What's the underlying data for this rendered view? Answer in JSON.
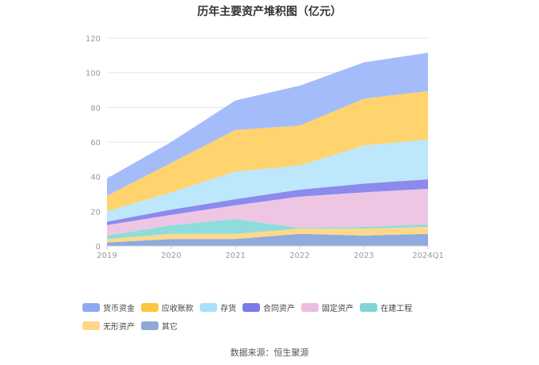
{
  "chart_data": {
    "type": "area",
    "stacked": true,
    "title": "历年主要资产堆积图（亿元）",
    "categories": [
      "2019",
      "2020",
      "2021",
      "2022",
      "2023",
      "2024Q1"
    ],
    "ylim": [
      0,
      120
    ],
    "yticks": [
      0,
      20,
      40,
      60,
      80,
      100,
      120
    ],
    "grid": true,
    "legend_position": "bottom",
    "series": [
      {
        "name": "其它",
        "color": "#8faadc",
        "values": [
          2,
          4,
          4,
          7,
          6,
          7
        ]
      },
      {
        "name": "无形资产",
        "color": "#ffd88a",
        "values": [
          2,
          3,
          3,
          3,
          4,
          4
        ]
      },
      {
        "name": "在建工程",
        "color": "#8fdcdc",
        "values": [
          2,
          5,
          8.5,
          0.5,
          1,
          1.5
        ]
      },
      {
        "name": "固定资产",
        "color": "#eec6e4",
        "values": [
          6,
          6,
          8,
          18,
          20,
          20.5
        ]
      },
      {
        "name": "合同资产",
        "color": "#8b8bee",
        "values": [
          2,
          3,
          3.5,
          4,
          5,
          5.5
        ]
      },
      {
        "name": "存货",
        "color": "#bde7fb",
        "values": [
          6,
          10,
          16,
          14,
          22,
          23
        ]
      },
      {
        "name": "应收账款",
        "color": "#ffd36e",
        "values": [
          9,
          17,
          24,
          23,
          27,
          28
        ]
      },
      {
        "name": "货币资金",
        "color": "#a4bcfa",
        "values": [
          10,
          12,
          17,
          23,
          21,
          22
        ]
      }
    ]
  },
  "legend": {
    "items": [
      {
        "label": "货币资金",
        "color": "#8fa8f5"
      },
      {
        "label": "应收账款",
        "color": "#ffc53d"
      },
      {
        "label": "存货",
        "color": "#a8e1fb"
      },
      {
        "label": "合同资产",
        "color": "#7a7ae8"
      },
      {
        "label": "固定资产",
        "color": "#eabde0"
      },
      {
        "label": "在建工程",
        "color": "#7fd6d6"
      },
      {
        "label": "无形资产",
        "color": "#ffd58a"
      },
      {
        "label": "其它",
        "color": "#8fa8d8"
      }
    ]
  },
  "source": "数据来源：恒生聚源"
}
